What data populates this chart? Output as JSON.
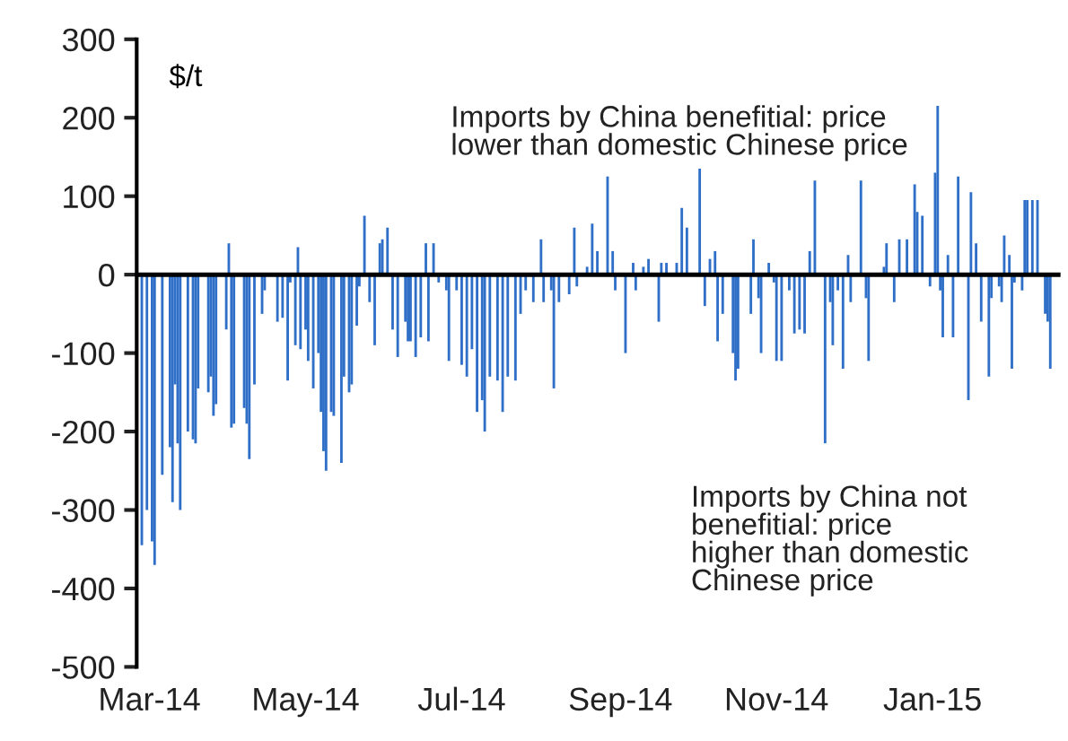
{
  "chart_data": {
    "type": "bar",
    "ylabel": "$/t",
    "x": [
      "2014-02-26",
      "2014-02-28",
      "2014-03-02",
      "2014-03-03",
      "2014-03-06",
      "2014-03-09",
      "2014-03-10",
      "2014-03-11",
      "2014-03-12",
      "2014-03-13",
      "2014-03-16",
      "2014-03-18",
      "2014-03-19",
      "2014-03-20",
      "2014-03-24",
      "2014-03-25",
      "2014-03-26",
      "2014-03-27",
      "2014-03-31",
      "2014-04-01",
      "2014-04-02",
      "2014-04-03",
      "2014-04-07",
      "2014-04-08",
      "2014-04-09",
      "2014-04-11",
      "2014-04-14",
      "2014-04-15",
      "2014-04-16",
      "2014-04-20",
      "2014-04-22",
      "2014-04-24",
      "2014-04-25",
      "2014-04-27",
      "2014-04-28",
      "2014-04-29",
      "2014-05-01",
      "2014-05-02",
      "2014-05-04",
      "2014-05-06",
      "2014-05-07",
      "2014-05-08",
      "2014-05-09",
      "2014-05-11",
      "2014-05-12",
      "2014-05-15",
      "2014-05-16",
      "2014-05-18",
      "2014-05-19",
      "2014-05-21",
      "2014-05-22",
      "2014-05-24",
      "2014-05-26",
      "2014-05-28",
      "2014-05-30",
      "2014-05-31",
      "2014-06-02",
      "2014-06-04",
      "2014-06-06",
      "2014-06-09",
      "2014-06-10",
      "2014-06-11",
      "2014-06-13",
      "2014-06-15",
      "2014-06-17",
      "2014-06-18",
      "2014-06-20",
      "2014-06-22",
      "2014-06-23",
      "2014-06-25",
      "2014-06-26",
      "2014-06-29",
      "2014-07-01",
      "2014-07-03",
      "2014-07-05",
      "2014-07-07",
      "2014-07-09",
      "2014-07-10",
      "2014-07-12",
      "2014-07-15",
      "2014-07-17",
      "2014-07-19",
      "2014-07-22",
      "2014-07-24",
      "2014-07-26",
      "2014-07-29",
      "2014-08-01",
      "2014-08-02",
      "2014-08-05",
      "2014-08-06",
      "2014-08-08",
      "2014-08-12",
      "2014-08-14",
      "2014-08-15",
      "2014-08-19",
      "2014-08-21",
      "2014-08-23",
      "2014-08-27",
      "2014-08-29",
      "2014-08-30",
      "2014-09-01",
      "2014-09-03",
      "2014-09-06",
      "2014-09-07",
      "2014-09-09",
      "2014-09-10",
      "2014-09-12",
      "2014-09-16",
      "2014-09-17",
      "2014-09-19",
      "2014-09-23",
      "2014-09-25",
      "2014-09-27",
      "2014-09-30",
      "2014-10-02",
      "2014-10-04",
      "2014-10-06",
      "2014-10-08",
      "2014-10-09",
      "2014-10-11",
      "2014-10-15",
      "2014-10-16",
      "2014-10-17",
      "2014-10-22",
      "2014-10-23",
      "2014-10-25",
      "2014-10-26",
      "2014-10-29",
      "2014-10-31",
      "2014-11-01",
      "2014-11-03",
      "2014-11-06",
      "2014-11-08",
      "2014-11-10",
      "2014-11-12",
      "2014-11-14",
      "2014-11-16",
      "2014-11-20",
      "2014-11-22",
      "2014-11-23",
      "2014-11-25",
      "2014-11-27",
      "2014-11-29",
      "2014-11-30",
      "2014-12-04",
      "2014-12-06",
      "2014-12-07",
      "2014-12-13",
      "2014-12-14",
      "2014-12-17",
      "2014-12-19",
      "2014-12-22",
      "2014-12-25",
      "2014-12-26",
      "2014-12-28",
      "2014-12-31",
      "2015-01-02",
      "2015-01-03",
      "2015-01-04",
      "2015-01-05",
      "2015-01-07",
      "2015-01-09",
      "2015-01-11",
      "2015-01-15",
      "2015-01-16",
      "2015-01-18",
      "2015-01-20",
      "2015-01-23",
      "2015-01-24",
      "2015-01-27",
      "2015-01-28",
      "2015-01-29",
      "2015-01-31",
      "2015-02-01",
      "2015-02-02",
      "2015-02-05",
      "2015-02-06",
      "2015-02-07",
      "2015-02-09",
      "2015-02-11",
      "2015-02-14",
      "2015-02-15",
      "2015-02-16"
    ],
    "values": [
      -345,
      -300,
      -340,
      -370,
      -255,
      -220,
      -290,
      -140,
      -215,
      -300,
      -200,
      -210,
      -215,
      -145,
      -150,
      -130,
      -180,
      -165,
      -70,
      40,
      -195,
      -190,
      -170,
      -190,
      -235,
      -140,
      -50,
      -20,
      null,
      -60,
      -55,
      -135,
      -10,
      -90,
      35,
      -95,
      -70,
      -110,
      -145,
      -100,
      -175,
      -225,
      -250,
      -175,
      -180,
      -240,
      -130,
      -150,
      -140,
      -65,
      -15,
      75,
      -35,
      -90,
      40,
      45,
      60,
      -70,
      -105,
      -60,
      -85,
      -85,
      -105,
      -80,
      40,
      -85,
      40,
      -10,
      null,
      -20,
      -110,
      -20,
      -115,
      -130,
      -95,
      -175,
      -160,
      -200,
      -130,
      -135,
      -175,
      -130,
      -135,
      -50,
      -20,
      -35,
      45,
      -35,
      -20,
      -145,
      -35,
      -25,
      60,
      -15,
      10,
      65,
      30,
      125,
      30,
      -20,
      null,
      -100,
      15,
      -20,
      null,
      10,
      20,
      -60,
      15,
      15,
      15,
      85,
      60,
      null,
      135,
      -40,
      20,
      30,
      -85,
      -50,
      -100,
      -135,
      -120,
      -50,
      45,
      -30,
      -100,
      15,
      -10,
      -110,
      -110,
      -20,
      -75,
      -70,
      -75,
      30,
      120,
      -215,
      -35,
      -90,
      -20,
      -120,
      25,
      -35,
      120,
      -30,
      -110,
      10,
      40,
      -35,
      45,
      45,
      115,
      80,
      75,
      -15,
      130,
      215,
      -20,
      -80,
      25,
      -80,
      125,
      -160,
      105,
      40,
      -60,
      -130,
      -30,
      -15,
      -35,
      50,
      25,
      -120,
      -10,
      -20,
      95,
      95,
      95,
      95,
      -50,
      -60,
      -120
    ],
    "color": "#2f6fc7",
    "xlim": [
      "2014-02-24",
      "2015-02-20"
    ],
    "xticks": [
      {
        "value": "2014-03-01",
        "label": "Mar-14"
      },
      {
        "value": "2014-05-01",
        "label": "May-14"
      },
      {
        "value": "2014-07-01",
        "label": "Jul-14"
      },
      {
        "value": "2014-09-01",
        "label": "Sep-14"
      },
      {
        "value": "2014-11-01",
        "label": "Nov-14"
      },
      {
        "value": "2015-01-01",
        "label": "Jan-15"
      }
    ],
    "ylim": [
      -500,
      300
    ],
    "yticks": [
      -500,
      -400,
      -300,
      -200,
      -100,
      0,
      100,
      200,
      300
    ],
    "ref_lines": [
      {
        "axis": "y",
        "value": 0,
        "color": "#000000",
        "line_style": "solid"
      }
    ],
    "grid": false,
    "legend": false,
    "annotations": [
      "Imports by China benefitial: price\nlower than domestic Chinese price",
      "Imports by China not\nbenefitial: price\nhigher than domestic\nChinese price"
    ]
  }
}
